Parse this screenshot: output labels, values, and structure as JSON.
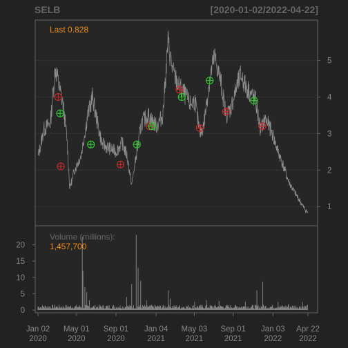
{
  "chart_data": {
    "type": "line",
    "title": "SELB",
    "date_range": "[2020-01-02/2022-04-22]",
    "colors": {
      "background": "#222222",
      "panel": "#262626",
      "border": "#666666",
      "grid": "#333333",
      "text": "#888888",
      "title": "#666666",
      "accent": "#f28c13",
      "price": "#8c8c8c",
      "buy": "#31c431",
      "sell": "#c12a2a"
    },
    "price": {
      "last_label": "Last 0.828",
      "ylim": [
        0.7,
        5.9
      ],
      "yticks": [
        1,
        2,
        3,
        4,
        5
      ],
      "anchors": [
        [
          "2020-01-02",
          2.35
        ],
        [
          "2020-01-20",
          3.1
        ],
        [
          "2020-02-10",
          3.3
        ],
        [
          "2020-02-25",
          4.8
        ],
        [
          "2020-03-10",
          4.2
        ],
        [
          "2020-03-20",
          3.8
        ],
        [
          "2020-04-01",
          2.9
        ],
        [
          "2020-04-10",
          1.5
        ],
        [
          "2020-04-25",
          2.0
        ],
        [
          "2020-05-15",
          2.4
        ],
        [
          "2020-06-05",
          3.5
        ],
        [
          "2020-06-20",
          4.0
        ],
        [
          "2020-07-05",
          3.3
        ],
        [
          "2020-07-20",
          2.7
        ],
        [
          "2020-08-10",
          2.6
        ],
        [
          "2020-09-01",
          2.5
        ],
        [
          "2020-09-20",
          2.75
        ],
        [
          "2020-10-05",
          2.4
        ],
        [
          "2020-10-20",
          1.6
        ],
        [
          "2020-11-05",
          2.5
        ],
        [
          "2020-11-20",
          3.3
        ],
        [
          "2020-12-10",
          3.5
        ],
        [
          "2021-01-05",
          3.2
        ],
        [
          "2021-01-25",
          3.5
        ],
        [
          "2021-02-10",
          5.5
        ],
        [
          "2021-02-25",
          4.7
        ],
        [
          "2021-03-15",
          4.3
        ],
        [
          "2021-04-01",
          4.1
        ],
        [
          "2021-04-20",
          3.8
        ],
        [
          "2021-05-05",
          3.9
        ],
        [
          "2021-05-20",
          3.0
        ],
        [
          "2021-06-01",
          3.2
        ],
        [
          "2021-06-20",
          4.5
        ],
        [
          "2021-07-05",
          5.1
        ],
        [
          "2021-07-25",
          4.4
        ],
        [
          "2021-08-10",
          3.5
        ],
        [
          "2021-08-25",
          3.7
        ],
        [
          "2021-09-10",
          4.2
        ],
        [
          "2021-09-25",
          4.6
        ],
        [
          "2021-10-10",
          4.3
        ],
        [
          "2021-10-25",
          4.1
        ],
        [
          "2021-11-10",
          3.9
        ],
        [
          "2021-11-25",
          3.1
        ],
        [
          "2021-12-10",
          3.4
        ],
        [
          "2021-12-28",
          3.1
        ],
        [
          "2022-01-15",
          2.6
        ],
        [
          "2022-02-01",
          2.2
        ],
        [
          "2022-02-20",
          1.7
        ],
        [
          "2022-03-10",
          1.4
        ],
        [
          "2022-03-25",
          1.2
        ],
        [
          "2022-04-10",
          0.95
        ],
        [
          "2022-04-22",
          0.83
        ]
      ]
    },
    "signals": {
      "buy": [
        [
          "2020-03-11",
          3.55
        ],
        [
          "2020-06-15",
          2.7
        ],
        [
          "2020-11-05",
          2.7
        ],
        [
          "2020-12-22",
          3.2
        ],
        [
          "2021-03-25",
          4.0
        ],
        [
          "2021-06-20",
          4.45
        ],
        [
          "2021-11-05",
          3.9
        ]
      ],
      "sell": [
        [
          "2020-03-05",
          4.0
        ],
        [
          "2020-03-13",
          2.1
        ],
        [
          "2020-09-15",
          2.15
        ],
        [
          "2020-12-15",
          3.2
        ],
        [
          "2021-03-18",
          4.2
        ],
        [
          "2021-05-20",
          3.15
        ],
        [
          "2021-08-10",
          3.6
        ],
        [
          "2021-12-01",
          3.2
        ]
      ]
    },
    "volume": {
      "label": "Volume (millions):",
      "last_label": "1,457,700",
      "ylim": [
        0,
        23.5
      ],
      "yticks": [
        0,
        5,
        10,
        15,
        20
      ],
      "base": 0.9,
      "spikes": [
        [
          "2020-05-20",
          22.5
        ],
        [
          "2020-05-22",
          12.0
        ],
        [
          "2020-05-27",
          7.0
        ],
        [
          "2020-06-03",
          5.5
        ],
        [
          "2020-06-10",
          3.0
        ],
        [
          "2020-10-05",
          4.0
        ],
        [
          "2020-10-20",
          8.0
        ],
        [
          "2020-11-03",
          23.0
        ],
        [
          "2020-11-10",
          13.0
        ],
        [
          "2020-11-18",
          9.0
        ],
        [
          "2020-12-05",
          3.0
        ],
        [
          "2021-02-11",
          6.0
        ],
        [
          "2021-02-18",
          3.5
        ],
        [
          "2021-05-05",
          2.5
        ],
        [
          "2021-06-10",
          3.0
        ],
        [
          "2021-07-20",
          2.8
        ],
        [
          "2021-10-10",
          2.5
        ],
        [
          "2021-11-15",
          6.0
        ],
        [
          "2021-12-02",
          8.7
        ],
        [
          "2022-01-20",
          2.5
        ],
        [
          "2022-02-20",
          1.8
        ],
        [
          "2022-04-05",
          2.5
        ]
      ]
    },
    "x_ticks": [
      {
        "date": "2020-01-02",
        "line1": "Jan 02",
        "line2": "2020"
      },
      {
        "date": "2020-05-01",
        "line1": "May 01",
        "line2": "2020"
      },
      {
        "date": "2020-09-01",
        "line1": "Sep 01",
        "line2": "2020"
      },
      {
        "date": "2021-01-04",
        "line1": "Jan 04",
        "line2": "2021"
      },
      {
        "date": "2021-05-03",
        "line1": "May 03",
        "line2": "2021"
      },
      {
        "date": "2021-09-01",
        "line1": "Sep 01",
        "line2": "2021"
      },
      {
        "date": "2022-01-03",
        "line1": "Jan 03",
        "line2": "2022"
      },
      {
        "date": "2022-04-22",
        "line1": "Apr 22",
        "line2": "2022"
      }
    ]
  }
}
